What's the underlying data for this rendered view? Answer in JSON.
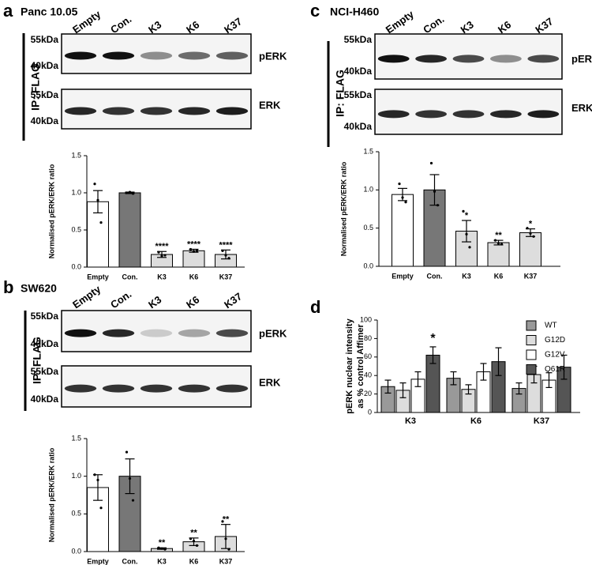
{
  "blots": [
    {
      "letter": "a",
      "title": "Panc 10.05",
      "lanes": [
        "Empty",
        "Con.",
        "K3",
        "K6",
        "K37"
      ],
      "ip_label": "IP: FLAG",
      "strips": [
        {
          "markers": [
            "55kDa",
            "40kDa"
          ],
          "label": "pERK"
        },
        {
          "markers": [
            "55kDa",
            "40kDa"
          ],
          "label": "ERK"
        }
      ]
    },
    {
      "letter": "b",
      "title": "SW620",
      "lanes": [
        "Empty",
        "Con.",
        "K3",
        "K6",
        "K37"
      ],
      "ip_label": "IP: FLAG",
      "strips": [
        {
          "markers": [
            "55kDa",
            "40kDa"
          ],
          "label": "pERK"
        },
        {
          "markers": [
            "55kDa",
            "40kDa"
          ],
          "label": "ERK"
        }
      ]
    },
    {
      "letter": "c",
      "title": "NCI-H460",
      "lanes": [
        "Empty",
        "Con.",
        "K3",
        "K6",
        "K37"
      ],
      "ip_label": "IP: FLAG",
      "strips": [
        {
          "markers": [
            "55kDa",
            "40kDa"
          ],
          "label": "pERK"
        },
        {
          "markers": [
            "55kDa",
            "40kDa"
          ],
          "label": "ERK"
        }
      ]
    }
  ],
  "chart_data": [
    {
      "type": "bar",
      "ylabel": "Normalised pERK/ERK ratio",
      "categories": [
        "Empty",
        "Con.",
        "K3",
        "K6",
        "K37"
      ],
      "values": [
        0.88,
        1.0,
        0.17,
        0.22,
        0.17
      ],
      "errors": [
        0.15,
        0.01,
        0.04,
        0.02,
        0.06
      ],
      "points": [
        [
          1.12,
          0.9,
          0.6
        ],
        [
          1.0,
          1.01,
          0.99
        ],
        [
          0.2,
          0.15,
          0.16
        ],
        [
          0.24,
          0.21,
          0.22
        ],
        [
          0.22,
          0.16,
          0.12
        ]
      ],
      "annotations": [
        "",
        "",
        "****",
        "****",
        "****"
      ],
      "colors": [
        "#ffffff",
        "#777777",
        "#dddddd",
        "#dddddd",
        "#dddddd"
      ],
      "ylim": [
        0,
        1.5
      ],
      "yticks": [
        {
          "value": 0,
          "label": "0.0"
        },
        0.5,
        {
          "value": 1,
          "label": "1.0"
        },
        1.5
      ]
    },
    {
      "type": "bar",
      "ylabel": "Normalised pERK/ERK ratio",
      "categories": [
        "Empty",
        "Con.",
        "K3",
        "K6",
        "K37"
      ],
      "values": [
        0.85,
        1.0,
        0.04,
        0.13,
        0.2
      ],
      "errors": [
        0.17,
        0.23,
        0.01,
        0.05,
        0.16
      ],
      "points": [
        [
          1.02,
          0.95,
          0.58
        ],
        [
          1.32,
          0.97,
          0.68
        ],
        [
          0.05,
          0.04,
          0.03
        ],
        [
          0.17,
          0.14,
          0.08
        ],
        [
          0.4,
          0.17,
          0.03
        ]
      ],
      "annotations": [
        "",
        "",
        "**",
        "**",
        "**"
      ],
      "colors": [
        "#ffffff",
        "#777777",
        "#dddddd",
        "#dddddd",
        "#dddddd"
      ],
      "ylim": [
        0,
        1.5
      ],
      "yticks": [
        {
          "value": 0,
          "label": "0.0"
        },
        0.5,
        {
          "value": 1,
          "label": "1.0"
        },
        1.5
      ]
    },
    {
      "type": "bar",
      "ylabel": "Normalised pERK/ERK ratio",
      "categories": [
        "Empty",
        "Con.",
        "K3",
        "K6",
        "K37"
      ],
      "values": [
        0.94,
        1.0,
        0.46,
        0.31,
        0.44
      ],
      "errors": [
        0.08,
        0.2,
        0.14,
        0.03,
        0.05
      ],
      "points": [
        [
          1.08,
          0.9,
          0.84
        ],
        [
          1.35,
          0.98,
          0.8
        ],
        [
          0.72,
          0.42,
          0.25
        ],
        [
          0.34,
          0.3,
          0.29
        ],
        [
          0.5,
          0.43,
          0.39
        ]
      ],
      "annotations": [
        "",
        "",
        "*",
        "**",
        "*"
      ],
      "colors": [
        "#ffffff",
        "#777777",
        "#dddddd",
        "#dddddd",
        "#dddddd"
      ],
      "ylim": [
        0,
        1.5
      ],
      "yticks": [
        {
          "value": 0,
          "label": "0.0"
        },
        0.5,
        {
          "value": 1,
          "label": "1.0"
        },
        1.5
      ]
    },
    {
      "type": "grouped_bar",
      "letter": "d",
      "ylabel": [
        "pERK nuclear intensity",
        "as % control Affimer"
      ],
      "categories": [
        "K3",
        "K6",
        "K37"
      ],
      "series": [
        {
          "name": "WT",
          "color": "#999999",
          "values": [
            28,
            37,
            26
          ],
          "errors": [
            7,
            7,
            6
          ],
          "annotations": [
            "",
            "",
            ""
          ]
        },
        {
          "name": "G12D",
          "color": "#dddddd",
          "values": [
            24,
            25,
            41
          ],
          "errors": [
            8,
            5,
            9
          ],
          "annotations": [
            "",
            "",
            ""
          ]
        },
        {
          "name": "G12V",
          "color": "#ffffff",
          "values": [
            36,
            44,
            35
          ],
          "errors": [
            8,
            9,
            8
          ],
          "annotations": [
            "",
            "",
            ""
          ]
        },
        {
          "name": "Q61R",
          "color": "#555555",
          "values": [
            62,
            55,
            49
          ],
          "errors": [
            9,
            15,
            13
          ],
          "annotations": [
            "*",
            "",
            ""
          ]
        }
      ],
      "ylim": [
        0,
        100
      ],
      "yticks": [
        0,
        20,
        40,
        60,
        80,
        100
      ]
    }
  ]
}
